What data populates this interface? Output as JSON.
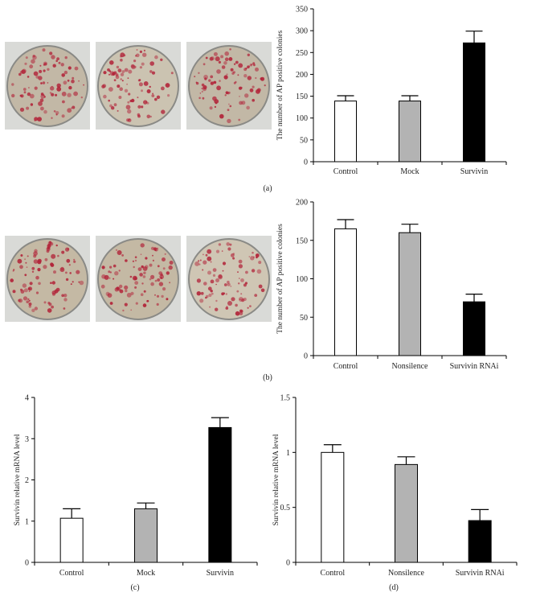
{
  "panel_labels": [
    "(a)",
    "(b)",
    "(c)",
    "(d)"
  ],
  "photo_rows": [
    {
      "panel": "(a)",
      "dishes": [
        "Control",
        "Mock",
        "Survivin"
      ],
      "stain_color": "#b2253a"
    },
    {
      "panel": "(b)",
      "dishes": [
        "Control",
        "Nonsilence",
        "Survivin RNAi"
      ],
      "stain_color": "#b2253a"
    }
  ],
  "chart_data": [
    {
      "panel": "(a)",
      "type": "bar",
      "categories": [
        "Control",
        "Mock",
        "Survivin"
      ],
      "values": [
        139,
        139,
        272
      ],
      "errors": [
        12,
        12,
        27
      ],
      "colors": [
        "#ffffff",
        "#b3b3b3",
        "#000000"
      ],
      "ylabel": "The number of AP positive colonies",
      "ylim": [
        0,
        350
      ],
      "yticks": [
        "0",
        "50",
        "100",
        "150",
        "200",
        "250",
        "300",
        "350"
      ],
      "grid": false
    },
    {
      "panel": "(b)",
      "type": "bar",
      "categories": [
        "Control",
        "Nonsilence",
        "Survivin RNAi"
      ],
      "values": [
        165,
        160,
        70
      ],
      "errors": [
        12,
        11,
        10
      ],
      "colors": [
        "#ffffff",
        "#b3b3b3",
        "#000000"
      ],
      "ylabel": "The number of AP positive colonies",
      "ylim": [
        0,
        200
      ],
      "yticks": [
        "0",
        "50",
        "100",
        "150",
        "200"
      ],
      "grid": false
    },
    {
      "panel": "(c)",
      "type": "bar",
      "categories": [
        "Control",
        "Mock",
        "Survivin"
      ],
      "values": [
        1.07,
        1.3,
        3.27
      ],
      "errors": [
        0.23,
        0.14,
        0.24
      ],
      "colors": [
        "#ffffff",
        "#b3b3b3",
        "#000000"
      ],
      "ylabel": "Survivin relative mRNA level",
      "ylim": [
        0,
        4
      ],
      "yticks": [
        "0",
        "1",
        "2",
        "3",
        "4"
      ],
      "grid": false
    },
    {
      "panel": "(d)",
      "type": "bar",
      "categories": [
        "Control",
        "Nonsilence",
        "Survivin RNAi"
      ],
      "values": [
        1.0,
        0.89,
        0.38
      ],
      "errors": [
        0.07,
        0.07,
        0.1
      ],
      "colors": [
        "#ffffff",
        "#b3b3b3",
        "#000000"
      ],
      "ylabel": "Survivin relative mRNA level",
      "ylim": [
        0,
        1.5
      ],
      "yticks": [
        "0",
        "0.5",
        "1",
        "1.5"
      ],
      "grid": false
    }
  ]
}
